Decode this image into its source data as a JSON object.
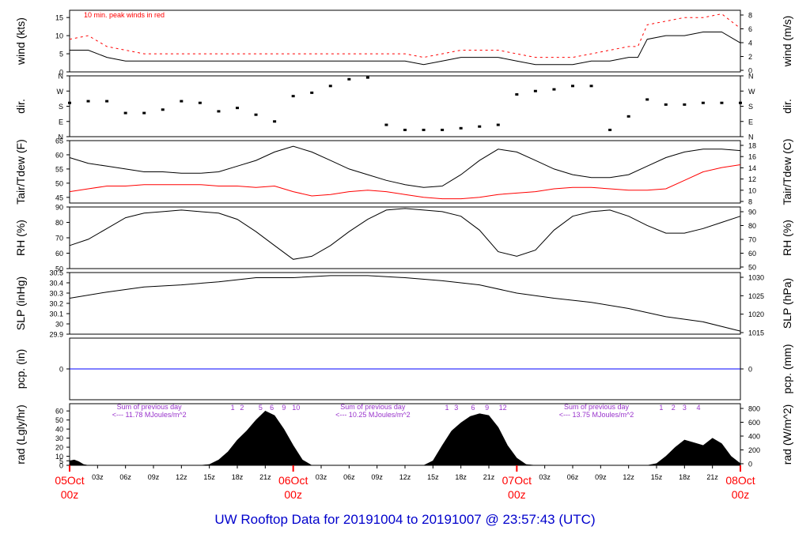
{
  "title": "UW Rooftop Data for 20191004  to  20191007 @ 23:57:43  (UTC)",
  "colors": {
    "title": "#0000cc",
    "red": "#ff0000",
    "purple": "#9933cc",
    "blue": "#0000ff",
    "black": "#000000"
  },
  "time_axis": {
    "tick_labels": [
      "03z",
      "06z",
      "09z",
      "12z",
      "15z",
      "18z",
      "21z",
      "03z",
      "06z",
      "09z",
      "12z",
      "15z",
      "18z",
      "21z",
      "03z",
      "06z",
      "09z",
      "12z",
      "15z",
      "18z",
      "21z"
    ],
    "tick_hours": [
      3,
      6,
      9,
      12,
      15,
      18,
      21,
      27,
      30,
      33,
      36,
      39,
      42,
      45,
      51,
      54,
      57,
      60,
      63,
      66,
      69
    ],
    "day_markers": [
      {
        "hour": 0,
        "line1": "05Oct",
        "line2": "00z"
      },
      {
        "hour": 24,
        "line1": "06Oct",
        "line2": "00z"
      },
      {
        "hour": 48,
        "line1": "07Oct",
        "line2": "00z"
      },
      {
        "hour": 72,
        "line1": "08Oct",
        "line2": "00z"
      }
    ],
    "range_hours": [
      0,
      72
    ]
  },
  "chart_data": [
    {
      "type": "line",
      "id": "wind",
      "ylabel_left": "wind (kts)",
      "ylabel_right": "wind (m/s)",
      "annotation": "10 min. peak winds in red",
      "ylim": [
        0,
        17
      ],
      "yticks_left": [
        0,
        5,
        10,
        15
      ],
      "yticks_right": [
        0,
        2,
        4,
        6,
        8
      ],
      "series": [
        {
          "name": "wind",
          "color": "#000000",
          "x": [
            0,
            2,
            4,
            6,
            8,
            10,
            12,
            14,
            16,
            18,
            20,
            22,
            24,
            26,
            28,
            30,
            32,
            34,
            36,
            38,
            40,
            42,
            44,
            46,
            48,
            50,
            52,
            54,
            56,
            58,
            60,
            61,
            62,
            64,
            66,
            68,
            70,
            72
          ],
          "y": [
            6,
            6,
            4,
            3,
            3,
            3,
            3,
            3,
            3,
            3,
            3,
            3,
            3,
            3,
            3,
            3,
            3,
            3,
            3,
            2,
            3,
            4,
            4,
            4,
            3,
            2,
            2,
            2,
            3,
            3,
            4,
            4,
            9,
            10,
            10,
            11,
            11,
            8
          ]
        },
        {
          "name": "peak",
          "color": "#ff0000",
          "x": [
            0,
            2,
            4,
            6,
            8,
            10,
            12,
            14,
            16,
            18,
            20,
            22,
            24,
            26,
            28,
            30,
            32,
            34,
            36,
            38,
            40,
            42,
            44,
            46,
            48,
            50,
            52,
            54,
            56,
            58,
            60,
            61,
            62,
            64,
            66,
            68,
            70,
            72
          ],
          "y": [
            9,
            10,
            7,
            6,
            5,
            5,
            5,
            5,
            5,
            5,
            5,
            5,
            5,
            5,
            5,
            5,
            5,
            5,
            5,
            4,
            5,
            6,
            6,
            6,
            5,
            4,
            4,
            4,
            5,
            6,
            7,
            7,
            13,
            14,
            15,
            15,
            16,
            12
          ]
        }
      ]
    },
    {
      "type": "scatter",
      "id": "dir",
      "ylabel_left": "dir.",
      "ylabel_right": "dir.",
      "yticks_labels": [
        "N",
        "E",
        "S",
        "W",
        "N"
      ],
      "ylim": [
        0,
        360
      ],
      "series": [
        {
          "name": "direction",
          "color": "#000000",
          "x": [
            0,
            2,
            4,
            6,
            8,
            10,
            12,
            14,
            16,
            18,
            20,
            22,
            24,
            26,
            28,
            30,
            32,
            34,
            36,
            38,
            40,
            42,
            44,
            46,
            48,
            50,
            52,
            54,
            56,
            58,
            60,
            62,
            64,
            66,
            68,
            70,
            72
          ],
          "y": [
            200,
            210,
            210,
            140,
            140,
            160,
            210,
            200,
            150,
            170,
            130,
            90,
            240,
            260,
            300,
            340,
            350,
            70,
            40,
            40,
            40,
            50,
            60,
            70,
            250,
            270,
            280,
            300,
            300,
            40,
            120,
            220,
            190,
            190,
            200,
            200,
            200
          ]
        }
      ]
    },
    {
      "type": "line",
      "id": "temp",
      "ylabel_left": "Tair/Tdew (F)",
      "ylabel_right": "Tair/Tdew (C)",
      "ylim": [
        43,
        65
      ],
      "yticks_left": [
        45,
        50,
        55,
        60,
        65
      ],
      "yticks_right": [
        8,
        10,
        12,
        14,
        16,
        18
      ],
      "series": [
        {
          "name": "Tair",
          "color": "#000000",
          "x": [
            0,
            2,
            4,
            6,
            8,
            10,
            12,
            14,
            16,
            18,
            20,
            22,
            24,
            26,
            28,
            30,
            32,
            34,
            36,
            38,
            40,
            42,
            44,
            46,
            48,
            50,
            52,
            54,
            56,
            58,
            60,
            62,
            64,
            66,
            68,
            70,
            72
          ],
          "y": [
            59,
            57,
            56,
            55,
            54,
            54,
            53.5,
            53.5,
            54,
            56,
            58,
            61,
            63,
            61,
            58,
            55,
            53,
            51,
            49.5,
            48.5,
            49,
            53,
            58,
            62,
            61,
            58,
            55,
            53,
            52,
            52,
            53,
            56,
            59,
            61,
            62,
            62,
            61.5
          ]
        },
        {
          "name": "Tdew",
          "color": "#ff0000",
          "x": [
            0,
            2,
            4,
            6,
            8,
            10,
            12,
            14,
            16,
            18,
            20,
            22,
            24,
            26,
            28,
            30,
            32,
            34,
            36,
            38,
            40,
            42,
            44,
            46,
            48,
            50,
            52,
            54,
            56,
            58,
            60,
            62,
            64,
            66,
            68,
            70,
            72
          ],
          "y": [
            47,
            48,
            49,
            49,
            49.5,
            49.5,
            49.5,
            49.5,
            49,
            49,
            48.5,
            49,
            47,
            45.5,
            46,
            47,
            47.5,
            47,
            46,
            45,
            44.5,
            44.5,
            45,
            46,
            46.5,
            47,
            48,
            48.5,
            48.5,
            48,
            47.5,
            47.5,
            48,
            51,
            54,
            55.5,
            56.5
          ]
        }
      ]
    },
    {
      "type": "line",
      "id": "rh",
      "ylabel_left": "RH (%)",
      "ylabel_right": "RH (%)",
      "ylim": [
        50,
        90
      ],
      "yticks_left": [
        50,
        60,
        70,
        80,
        90
      ],
      "yticks_right": [
        50,
        60,
        70,
        80,
        90
      ],
      "series": [
        {
          "name": "RH",
          "color": "#000000",
          "x": [
            0,
            2,
            4,
            6,
            8,
            10,
            12,
            14,
            16,
            18,
            20,
            22,
            24,
            26,
            28,
            30,
            32,
            34,
            36,
            38,
            40,
            42,
            44,
            46,
            48,
            50,
            52,
            54,
            56,
            58,
            60,
            62,
            64,
            66,
            68,
            70,
            72
          ],
          "y": [
            65,
            69,
            76,
            83,
            86,
            87,
            88,
            87,
            86,
            82,
            74,
            65,
            56,
            58,
            65,
            74,
            82,
            88,
            89,
            88,
            87,
            84,
            75,
            61,
            58,
            62,
            75,
            84,
            87,
            88,
            84,
            78,
            73,
            73,
            76,
            80,
            84
          ]
        }
      ]
    },
    {
      "type": "line",
      "id": "slp",
      "ylabel_left": "SLP (inHg)",
      "ylabel_right": "SLP (hPa)",
      "ylim": [
        29.9,
        30.5
      ],
      "yticks_left": [
        29.9,
        30.0,
        30.1,
        30.2,
        30.3,
        30.4,
        30.5
      ],
      "yticks_right": [
        1015,
        1020,
        1025,
        1030
      ],
      "series": [
        {
          "name": "SLP",
          "color": "#000000",
          "x": [
            0,
            4,
            8,
            12,
            16,
            20,
            24,
            28,
            32,
            36,
            40,
            44,
            48,
            52,
            56,
            60,
            64,
            68,
            72
          ],
          "y": [
            30.25,
            30.31,
            30.36,
            30.38,
            30.41,
            30.45,
            30.45,
            30.47,
            30.47,
            30.45,
            30.42,
            30.38,
            30.3,
            30.25,
            30.21,
            30.15,
            30.07,
            30.02,
            29.93
          ]
        }
      ]
    },
    {
      "type": "line",
      "id": "pcp",
      "ylabel_left": "pcp. (in)",
      "ylabel_right": "pcp. (mm)",
      "ylim": [
        -1,
        1
      ],
      "yticks_left": [
        0
      ],
      "yticks_right": [
        0
      ],
      "series": [
        {
          "name": "precipitation",
          "color": "#0000ff",
          "x": [
            0,
            72
          ],
          "y": [
            0,
            0
          ]
        }
      ]
    },
    {
      "type": "area",
      "id": "rad",
      "ylabel_left": "rad (Lgly/hr)",
      "ylabel_right": "rad (W/m^2)",
      "ylim": [
        0,
        68
      ],
      "yticks_left": [
        0,
        5,
        10,
        20,
        30,
        40,
        50,
        60
      ],
      "yticks_right": [
        0,
        200,
        400,
        600,
        800
      ],
      "sum_labels": [
        {
          "hour": 6,
          "line1": "Sum of previous day",
          "line2": "<--- 11.78 MJoules/m^2"
        },
        {
          "hour": 30,
          "line1": "Sum of previous day",
          "line2": "<--- 10.25 MJoules/m^2"
        },
        {
          "hour": 54,
          "line1": "Sum of previous day",
          "line2": "<--- 13.75 MJoules/m^2"
        }
      ],
      "hour_marks": [
        {
          "hour": 17.5,
          "label": "1"
        },
        {
          "hour": 18.5,
          "label": "2"
        },
        {
          "hour": 20.5,
          "label": "5"
        },
        {
          "hour": 21.7,
          "label": "6"
        },
        {
          "hour": 23,
          "label": "9"
        },
        {
          "hour": 24.3,
          "label": "10"
        },
        {
          "hour": 40.5,
          "label": "1"
        },
        {
          "hour": 41.5,
          "label": "3"
        },
        {
          "hour": 43.3,
          "label": "6"
        },
        {
          "hour": 44.8,
          "label": "9"
        },
        {
          "hour": 46.5,
          "label": "12"
        },
        {
          "hour": 63.5,
          "label": "1"
        },
        {
          "hour": 64.8,
          "label": "2"
        },
        {
          "hour": 66,
          "label": "3"
        },
        {
          "hour": 67.5,
          "label": "4"
        }
      ],
      "series": [
        {
          "name": "radiation",
          "color": "#000000",
          "x": [
            0,
            0.5,
            1,
            1.5,
            2,
            14,
            15,
            16,
            17,
            18,
            19,
            20,
            21,
            22,
            23,
            24,
            25,
            26,
            38,
            39,
            40,
            41,
            42,
            43,
            44,
            45,
            46,
            47,
            48,
            49,
            50,
            62,
            63,
            64,
            65,
            66,
            67,
            68,
            69,
            70,
            71,
            72
          ],
          "y": [
            5,
            6,
            4,
            1,
            0,
            0,
            1,
            6,
            15,
            28,
            38,
            50,
            60,
            55,
            40,
            22,
            6,
            0,
            0,
            5,
            22,
            38,
            47,
            54,
            57,
            55,
            42,
            22,
            8,
            1,
            0,
            0,
            2,
            10,
            20,
            28,
            25,
            22,
            30,
            24,
            10,
            2
          ]
        }
      ]
    }
  ]
}
